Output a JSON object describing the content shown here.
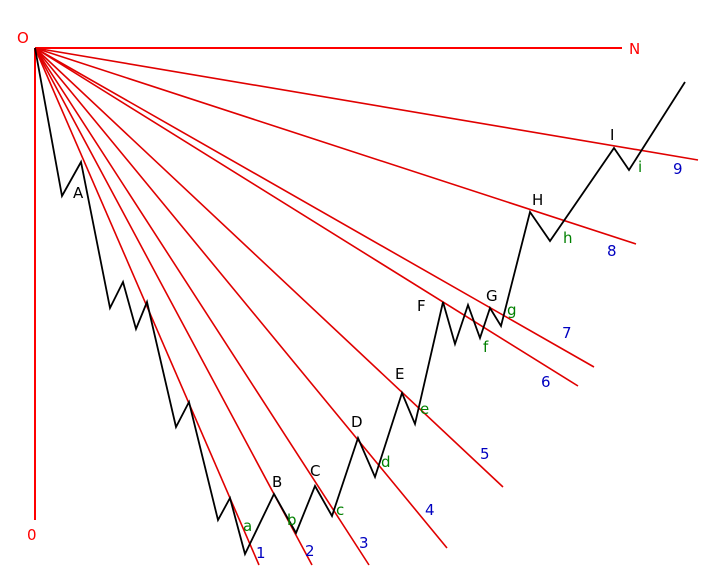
{
  "colors": {
    "axis": "#ff0000",
    "fan_line": "#e00000",
    "price": "#000000",
    "peak_label": "#000000",
    "trough_label": "#008000",
    "line_number": "#0000c0",
    "axis_label": "#ff0000"
  },
  "axis_labels": {
    "origin": "O",
    "horizontal_end": "N",
    "vertical_end": "0"
  },
  "fan_lines": [
    {
      "id": "1",
      "label": "1"
    },
    {
      "id": "2",
      "label": "2"
    },
    {
      "id": "3",
      "label": "3"
    },
    {
      "id": "4",
      "label": "4"
    },
    {
      "id": "5",
      "label": "5"
    },
    {
      "id": "6",
      "label": "6"
    },
    {
      "id": "7",
      "label": "7"
    },
    {
      "id": "8",
      "label": "8"
    },
    {
      "id": "9",
      "label": "9"
    }
  ],
  "peaks": [
    "A",
    "B",
    "C",
    "D",
    "E",
    "F",
    "G",
    "H",
    "I"
  ],
  "troughs": [
    "a",
    "b",
    "c",
    "d",
    "e",
    "f",
    "g",
    "h",
    "i"
  ]
}
